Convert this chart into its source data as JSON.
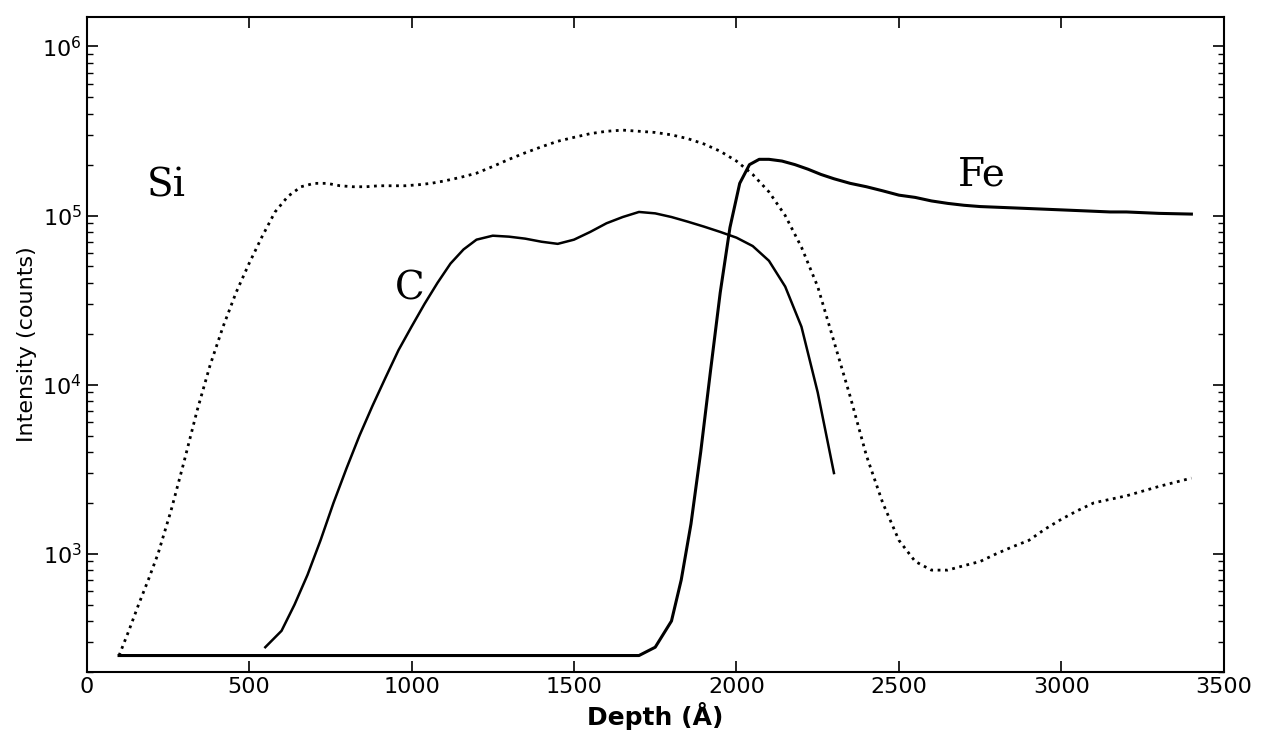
{
  "xlabel": "Depth (Å)",
  "ylabel": "Intensity (counts)",
  "xlim": [
    0,
    3500
  ],
  "ylim": [
    200,
    1500000
  ],
  "xticks": [
    0,
    500,
    1000,
    1500,
    2000,
    2500,
    3000,
    3500
  ],
  "xticklabels": [
    "0",
    "500",
    "1000",
    "1500",
    "2000",
    "2500",
    "3000",
    "3500"
  ],
  "label_Si": "Si",
  "label_C": "C",
  "label_Fe": "Fe",
  "Si_x": [
    100,
    130,
    160,
    190,
    220,
    260,
    300,
    340,
    380,
    420,
    460,
    500,
    540,
    580,
    620,
    660,
    700,
    740,
    780,
    820,
    860,
    900,
    940,
    980,
    1020,
    1060,
    1100,
    1150,
    1200,
    1250,
    1300,
    1350,
    1400,
    1450,
    1500,
    1550,
    1600,
    1650,
    1700,
    1750,
    1800,
    1850,
    1900,
    1950,
    2000,
    2050,
    2100,
    2150,
    2200,
    2250,
    2300,
    2350,
    2400,
    2450,
    2500,
    2550,
    2600,
    2650,
    2700,
    2750,
    2800,
    2850,
    2900,
    2950,
    3000,
    3050,
    3100,
    3200,
    3300,
    3400
  ],
  "Si_y": [
    250,
    350,
    500,
    700,
    1000,
    1800,
    3500,
    7000,
    13000,
    22000,
    35000,
    52000,
    75000,
    105000,
    130000,
    148000,
    155000,
    155000,
    150000,
    148000,
    148000,
    150000,
    150000,
    150000,
    152000,
    155000,
    160000,
    168000,
    178000,
    195000,
    215000,
    235000,
    255000,
    275000,
    290000,
    305000,
    315000,
    320000,
    315000,
    310000,
    300000,
    285000,
    265000,
    240000,
    210000,
    175000,
    138000,
    100000,
    65000,
    38000,
    18000,
    8500,
    3800,
    2000,
    1200,
    900,
    800,
    800,
    850,
    900,
    1000,
    1100,
    1200,
    1400,
    1600,
    1800,
    2000,
    2200,
    2500,
    2800
  ],
  "C_x": [
    550,
    600,
    640,
    680,
    720,
    760,
    800,
    840,
    880,
    920,
    960,
    1000,
    1040,
    1080,
    1120,
    1160,
    1200,
    1250,
    1300,
    1350,
    1400,
    1450,
    1500,
    1550,
    1600,
    1650,
    1700,
    1750,
    1800,
    1850,
    1900,
    1950,
    2000,
    2050,
    2100,
    2150,
    2200,
    2250,
    2300
  ],
  "C_y": [
    280,
    350,
    500,
    750,
    1200,
    2000,
    3200,
    5000,
    7500,
    11000,
    16000,
    22000,
    30000,
    40000,
    52000,
    63000,
    72000,
    76000,
    75000,
    73000,
    70000,
    68000,
    72000,
    80000,
    90000,
    98000,
    105000,
    103000,
    98000,
    92000,
    86000,
    80000,
    74000,
    66000,
    54000,
    38000,
    22000,
    9000,
    3000
  ],
  "Fe_x": [
    100,
    200,
    300,
    400,
    500,
    600,
    700,
    800,
    900,
    1000,
    1100,
    1200,
    1300,
    1400,
    1500,
    1600,
    1700,
    1750,
    1800,
    1830,
    1860,
    1890,
    1920,
    1950,
    1980,
    2010,
    2040,
    2070,
    2100,
    2140,
    2180,
    2220,
    2260,
    2300,
    2350,
    2400,
    2450,
    2500,
    2550,
    2600,
    2650,
    2700,
    2750,
    2800,
    2850,
    2900,
    2950,
    3000,
    3050,
    3100,
    3150,
    3200,
    3300,
    3400
  ],
  "Fe_y": [
    250,
    250,
    250,
    250,
    250,
    250,
    250,
    250,
    250,
    250,
    250,
    250,
    250,
    250,
    250,
    250,
    250,
    280,
    400,
    700,
    1500,
    4000,
    12000,
    35000,
    85000,
    155000,
    200000,
    215000,
    215000,
    210000,
    200000,
    188000,
    175000,
    165000,
    155000,
    148000,
    140000,
    132000,
    128000,
    122000,
    118000,
    115000,
    113000,
    112000,
    111000,
    110000,
    109000,
    108000,
    107000,
    106000,
    105000,
    105000,
    103000,
    102000
  ]
}
